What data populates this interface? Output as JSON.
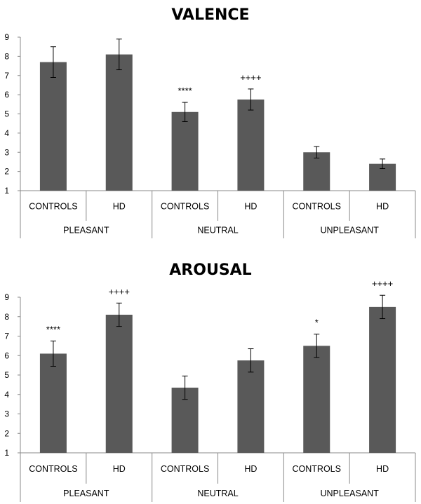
{
  "chart_data": [
    {
      "type": "bar",
      "title": "VALENCE",
      "xlabel": "",
      "ylabel": "",
      "ylim": [
        1,
        9
      ],
      "yticks": [
        1,
        2,
        3,
        4,
        5,
        6,
        7,
        8,
        9
      ],
      "grid": false,
      "legend": "none",
      "bar_color": "#595959",
      "groups": [
        "PLEASANT",
        "NEUTRAL",
        "UNPLEASANT"
      ],
      "categories": [
        "CONTROLS",
        "HD",
        "CONTROLS",
        "HD",
        "CONTROLS",
        "HD"
      ],
      "values": [
        7.7,
        8.1,
        5.1,
        5.75,
        3.0,
        2.4
      ],
      "errors": [
        0.8,
        0.8,
        0.5,
        0.55,
        0.3,
        0.25
      ],
      "annotations": [
        "",
        "",
        "****",
        "++++",
        "",
        ""
      ]
    },
    {
      "type": "bar",
      "title": "AROUSAL",
      "xlabel": "",
      "ylabel": "",
      "ylim": [
        1,
        9
      ],
      "yticks": [
        1,
        2,
        3,
        4,
        5,
        6,
        7,
        8,
        9
      ],
      "grid": false,
      "legend": "none",
      "bar_color": "#595959",
      "groups": [
        "PLEASANT",
        "NEUTRAL",
        "UNPLEASANT"
      ],
      "categories": [
        "CONTROLS",
        "HD",
        "CONTROLS",
        "HD",
        "CONTROLS",
        "HD"
      ],
      "values": [
        6.1,
        8.1,
        4.35,
        5.75,
        6.5,
        8.5
      ],
      "errors": [
        0.65,
        0.6,
        0.6,
        0.6,
        0.6,
        0.6
      ],
      "annotations": [
        "****",
        "++++",
        "",
        "",
        "*",
        "++++"
      ]
    }
  ]
}
